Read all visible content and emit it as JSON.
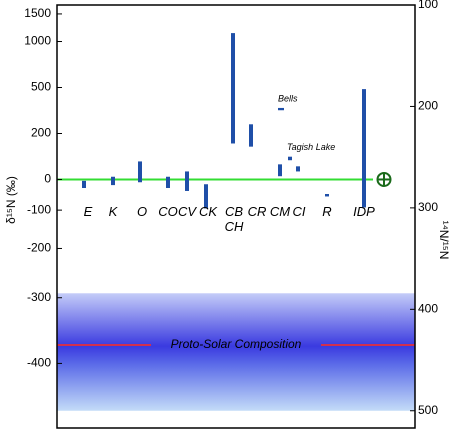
{
  "chart_data": {
    "type": "range",
    "ylabel": "δ¹⁵N (‰)",
    "y2label": "¹⁴N/¹⁵N",
    "ratio_standard": 272,
    "y2lim": [
      100,
      517
    ],
    "y2ticks": [
      100,
      200,
      300,
      400,
      500
    ],
    "yticks": [
      1500,
      1000,
      500,
      200,
      0,
      -100,
      -200,
      -300,
      -400
    ],
    "categories": [
      "E",
      "K",
      "O",
      "CO",
      "CV",
      "CK",
      "CB\nCH",
      "CR",
      "CM",
      "CI",
      "R",
      "IDP"
    ],
    "ranges": [
      [
        -30,
        -5
      ],
      [
        -20,
        10
      ],
      [
        -10,
        70
      ],
      [
        -30,
        10
      ],
      [
        -40,
        30
      ],
      [
        -95,
        -17
      ],
      [
        150,
        1130
      ],
      [
        135,
        250
      ],
      [
        12,
        58
      ],
      [
        30,
        50
      ],
      [
        -58,
        -50
      ],
      [
        -92,
        487
      ]
    ],
    "color": "#1f4fa8",
    "annotations": [
      {
        "text": "Bells",
        "range": [
          335,
          350
        ]
      },
      {
        "text": "Tagish Lake",
        "range": [
          75,
          90
        ]
      }
    ],
    "reference_line": {
      "value": 0,
      "color": "#33dd33"
    },
    "proto_solar": {
      "label": "Proto-Solar Composition",
      "value": -375,
      "range": [
        -456,
        -292
      ],
      "color": "#d03050"
    }
  }
}
